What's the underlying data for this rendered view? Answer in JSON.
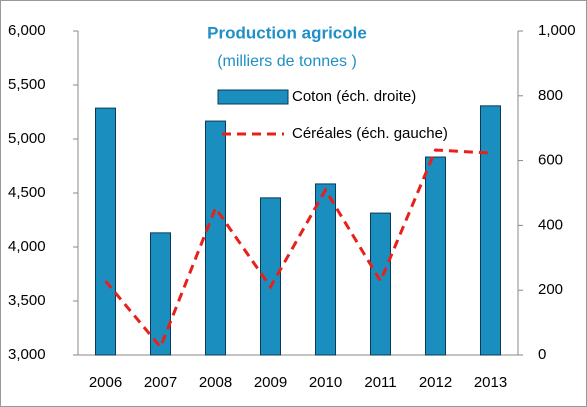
{
  "chart_data": {
    "type": "bar_line",
    "title": "Production agricole",
    "subtitle": "(milliers de tonnes )",
    "categories": [
      "2006",
      "2007",
      "2008",
      "2009",
      "2010",
      "2011",
      "2012",
      "2013"
    ],
    "series": [
      {
        "name": "Coton (éch. droite)",
        "type": "bar",
        "axis": "y2",
        "color": "#1a8fbf",
        "values": [
          762,
          377,
          722,
          485,
          528,
          438,
          611,
          769
        ]
      },
      {
        "name": "Céréales (éch. gauche)",
        "type": "line",
        "axis": "y",
        "color": "#e8201b",
        "values": [
          3685,
          3074,
          4361,
          3630,
          4528,
          3685,
          4898,
          4870
        ]
      }
    ],
    "ylim": [
      3000,
      6000
    ],
    "yticks": [
      {
        "value": 3000,
        "label": "3,000"
      },
      {
        "value": 3500,
        "label": "3,500"
      },
      {
        "value": 4000,
        "label": "4,000"
      },
      {
        "value": 4500,
        "label": "4,500"
      },
      {
        "value": 5000,
        "label": "5,000"
      },
      {
        "value": 5500,
        "label": "5,500"
      },
      {
        "value": 6000,
        "label": "6,000"
      }
    ],
    "y2lim": [
      0,
      1000
    ],
    "y2ticks": [
      0,
      200,
      400,
      600,
      800,
      {
        "value": 1000,
        "label": "1,000"
      }
    ],
    "grid": false
  }
}
